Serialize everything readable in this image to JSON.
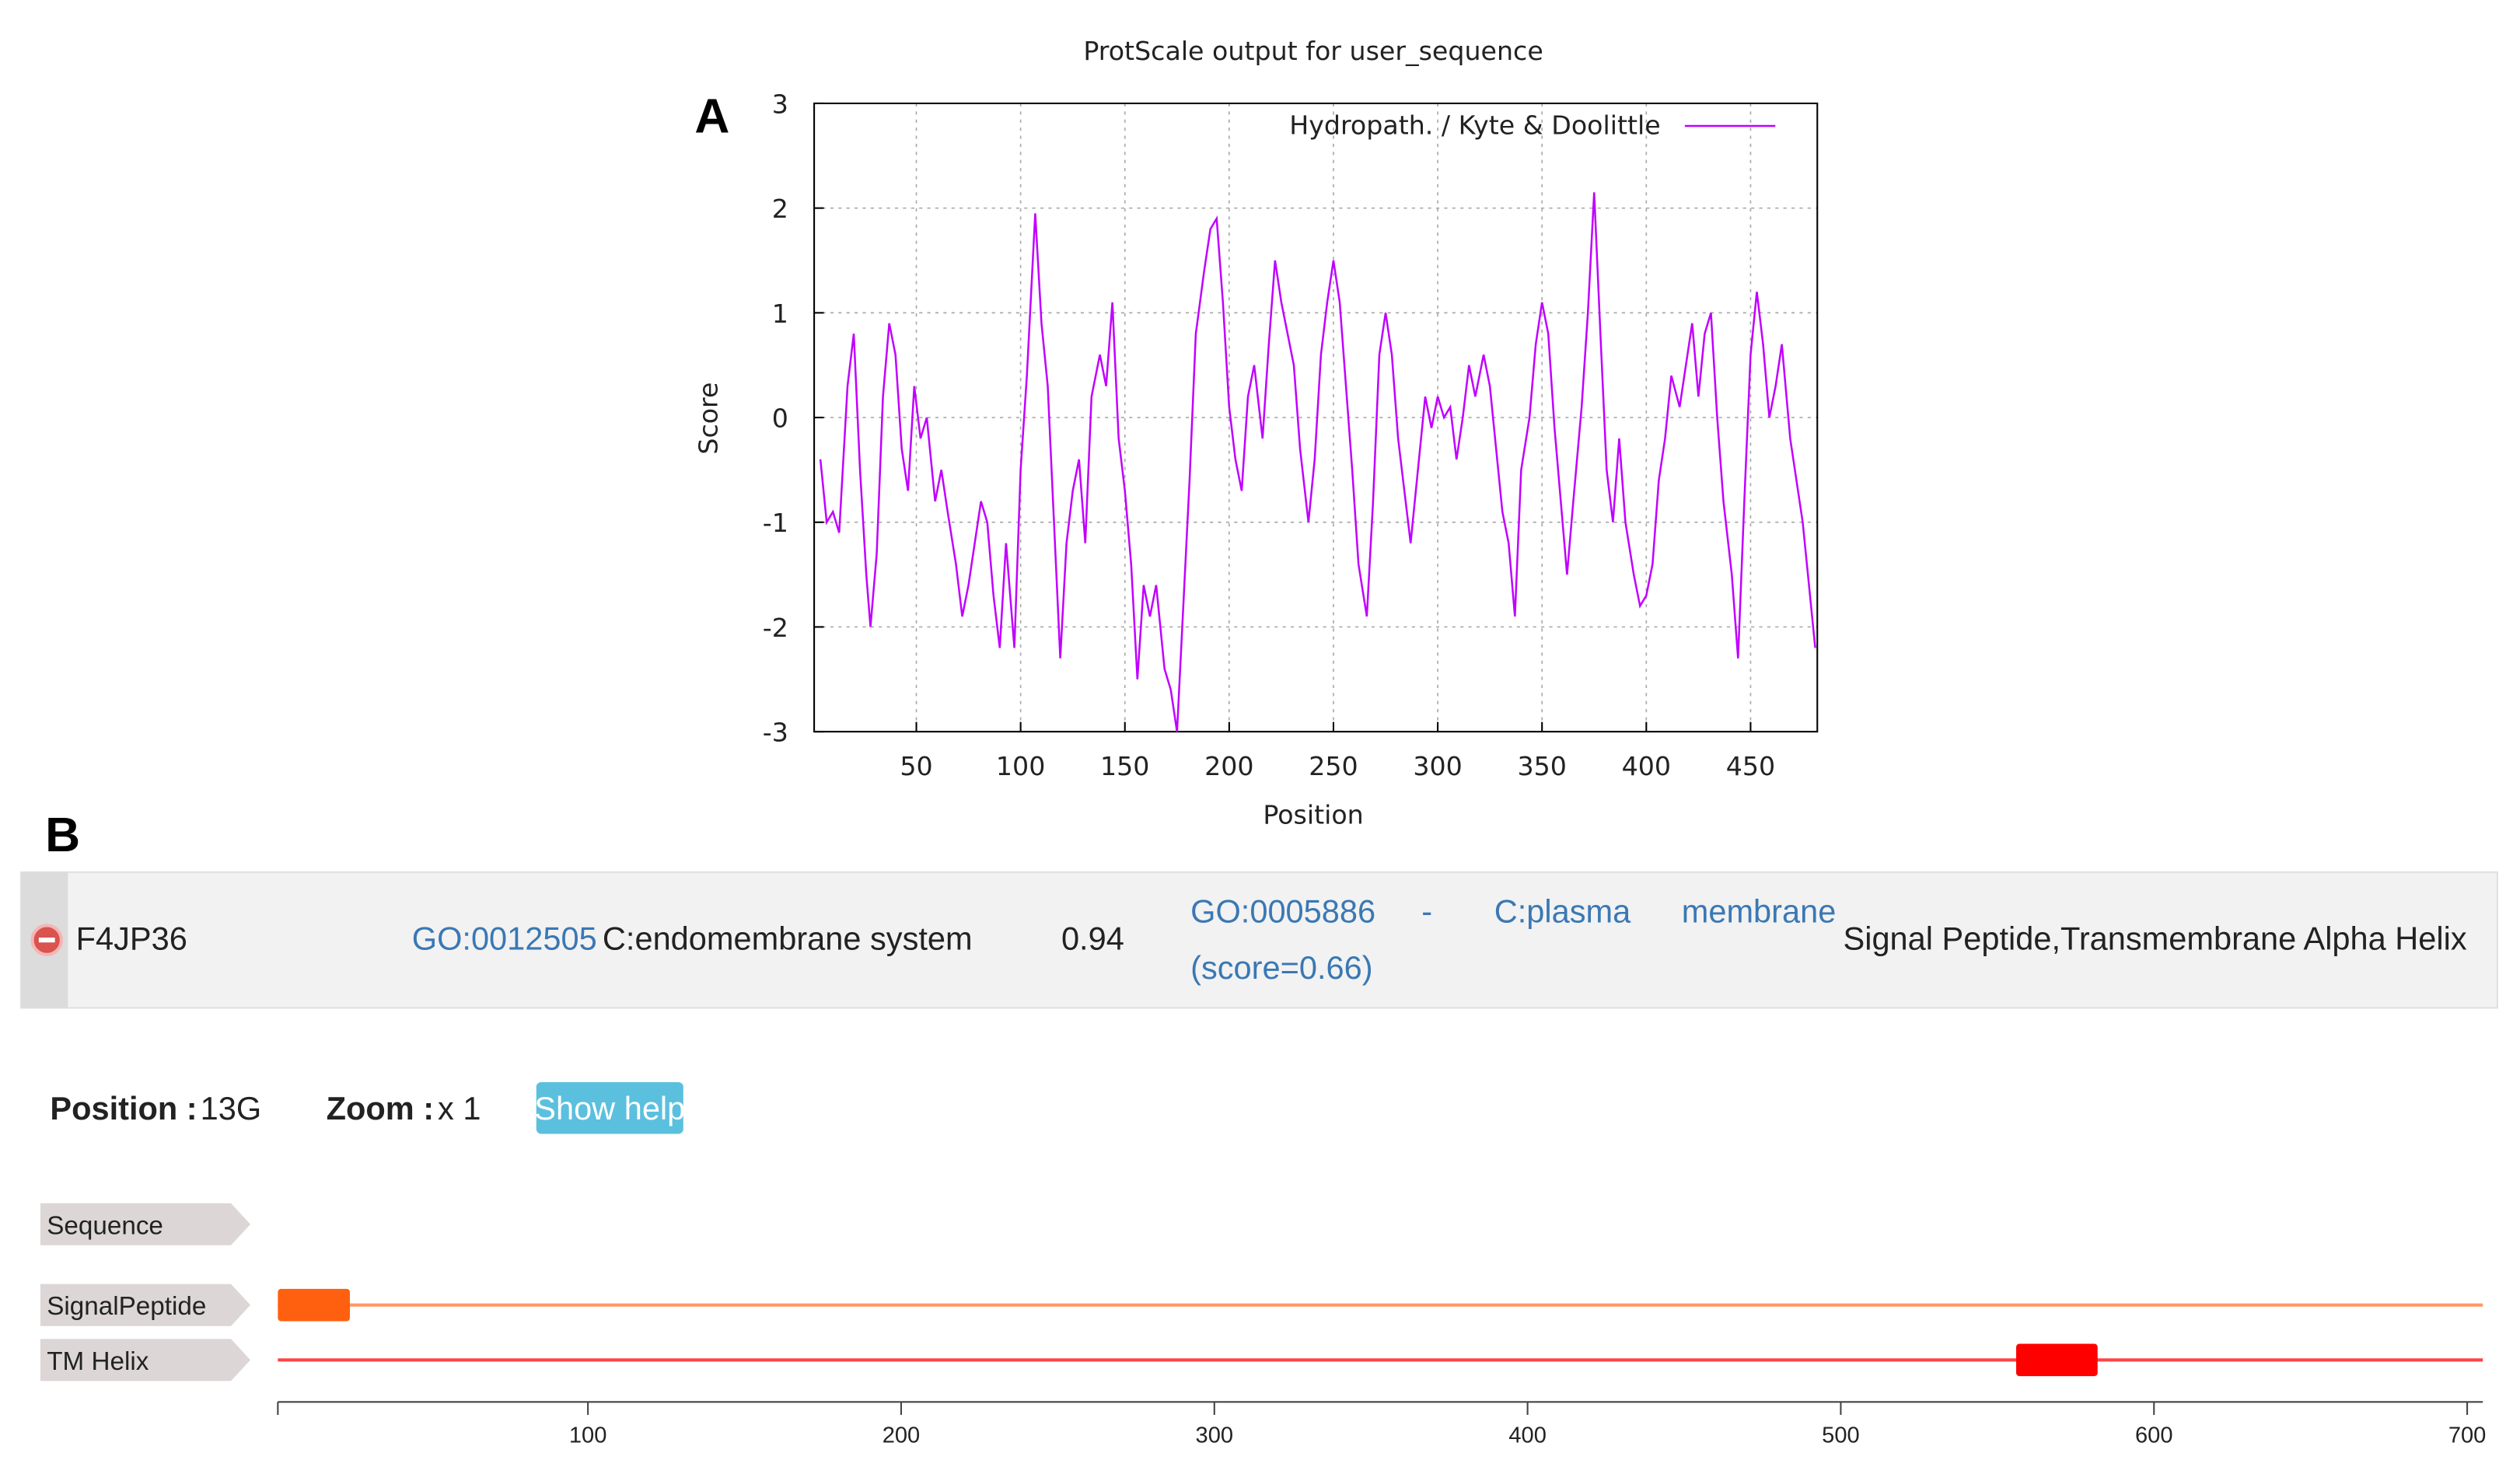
{
  "panel_labels": [
    "A",
    "B"
  ],
  "chart_data": {
    "type": "line",
    "title": "ProtScale output for user_sequence",
    "x_label": "Position",
    "y_label": "Score",
    "x": [
      4,
      7,
      10,
      13,
      17,
      20,
      23,
      26,
      28,
      31,
      34,
      37,
      40,
      43,
      46,
      49,
      52,
      55,
      59,
      62,
      65,
      69,
      72,
      75,
      78,
      81,
      84,
      87,
      90,
      93,
      97,
      100,
      103,
      107,
      110,
      113,
      116,
      119,
      122,
      125,
      128,
      131,
      134,
      138,
      141,
      144,
      147,
      150,
      153,
      156,
      159,
      162,
      165,
      169,
      172,
      175,
      178,
      181,
      184,
      188,
      191,
      194,
      197,
      200,
      203,
      206,
      209,
      212,
      216,
      219,
      222,
      225,
      228,
      231,
      234,
      238,
      241,
      244,
      247,
      250,
      253,
      256,
      259,
      262,
      266,
      269,
      272,
      275,
      278,
      281,
      284,
      287,
      291,
      294,
      297,
      300,
      303,
      306,
      309,
      312,
      315,
      318,
      322,
      325,
      328,
      331,
      334,
      337,
      340,
      344,
      347,
      350,
      353,
      356,
      359,
      362,
      365,
      369,
      372,
      375,
      378,
      381,
      384,
      387,
      390,
      394,
      397,
      400,
      403,
      406,
      409,
      412,
      416,
      419,
      422,
      425,
      428,
      431,
      434,
      437,
      441,
      444,
      447,
      450,
      453,
      456,
      459,
      462,
      465,
      469,
      472,
      475,
      478,
      481
    ],
    "series": [
      {
        "name": "Hydropath. / Kyte & Doolittle",
        "color": "#c000ff",
        "values": [
          -0.4,
          -1.0,
          -0.9,
          -1.1,
          0.3,
          0.8,
          -0.5,
          -1.5,
          -2.0,
          -1.3,
          0.2,
          0.9,
          0.6,
          -0.3,
          -0.7,
          0.3,
          -0.2,
          0.0,
          -0.8,
          -0.5,
          -0.9,
          -1.4,
          -1.9,
          -1.6,
          -1.2,
          -0.8,
          -1.0,
          -1.7,
          -2.2,
          -1.2,
          -2.2,
          -0.5,
          0.4,
          1.95,
          0.9,
          0.3,
          -1.0,
          -2.3,
          -1.2,
          -0.7,
          -0.4,
          -1.2,
          0.2,
          0.6,
          0.3,
          1.1,
          -0.2,
          -0.7,
          -1.4,
          -2.5,
          -1.6,
          -1.9,
          -1.6,
          -2.4,
          -2.6,
          -3.0,
          -1.8,
          -0.6,
          0.8,
          1.4,
          1.8,
          1.9,
          1.1,
          0.1,
          -0.4,
          -0.7,
          0.2,
          0.5,
          -0.2,
          0.7,
          1.5,
          1.1,
          0.8,
          0.5,
          -0.3,
          -1.0,
          -0.4,
          0.6,
          1.1,
          1.5,
          1.1,
          0.3,
          -0.5,
          -1.4,
          -1.9,
          -0.8,
          0.6,
          1.0,
          0.6,
          -0.2,
          -0.7,
          -1.2,
          -0.4,
          0.2,
          -0.1,
          0.2,
          0.0,
          0.1,
          -0.4,
          0.0,
          0.5,
          0.2,
          0.6,
          0.3,
          -0.3,
          -0.9,
          -1.2,
          -1.9,
          -0.5,
          0.0,
          0.7,
          1.1,
          0.8,
          -0.1,
          -0.8,
          -1.5,
          -0.8,
          0.1,
          1.0,
          2.15,
          0.8,
          -0.5,
          -1.0,
          -0.2,
          -1.0,
          -1.5,
          -1.8,
          -1.7,
          -1.4,
          -0.6,
          -0.2,
          0.4,
          0.1,
          0.5,
          0.9,
          0.2,
          0.8,
          1.0,
          0.0,
          -0.8,
          -1.5,
          -2.3,
          -0.8,
          0.6,
          1.2,
          0.7,
          0.0,
          0.3,
          0.7,
          -0.2,
          -0.6,
          -1.0,
          -1.6,
          -2.2
        ]
      }
    ],
    "xlim": [
      1,
      482
    ],
    "ylim": [
      -3,
      3
    ],
    "xticks": [
      50,
      100,
      150,
      200,
      250,
      300,
      350,
      400,
      450
    ],
    "yticks": [
      -3,
      -2,
      -1,
      0,
      1,
      2,
      3
    ],
    "grid": true,
    "legend": "top-right"
  },
  "entry": {
    "id": "F4JP36",
    "go_id": "GO:0012505",
    "go_term": "C:endomembrane system",
    "score": 0.94,
    "predicted_go_id": "GO:0005886",
    "separator": "-",
    "predicted_term": [
      "C:plasma",
      "membrane"
    ],
    "predicted_score": "(score=0.66)",
    "features": "Signal Peptide,Transmembrane Alpha Helix"
  },
  "viewer": {
    "position_label": "Position :",
    "position": "13G",
    "zoom_label": "Zoom :",
    "zoom": "x 1",
    "help_button": "Show help",
    "tracks": [
      "Sequence",
      "SignalPeptide",
      "TM Helix"
    ],
    "features": [
      {
        "track": 1,
        "start": 1,
        "end": 24,
        "color": "#ff6010"
      },
      {
        "track": 2,
        "start": 556,
        "end": 582,
        "color": "#ff0000"
      }
    ],
    "track_colors": [
      null,
      "#ff9966",
      "#ff4444"
    ],
    "xlim": [
      1,
      705
    ],
    "xticks": [
      100,
      200,
      300,
      400,
      500,
      600,
      700
    ]
  }
}
